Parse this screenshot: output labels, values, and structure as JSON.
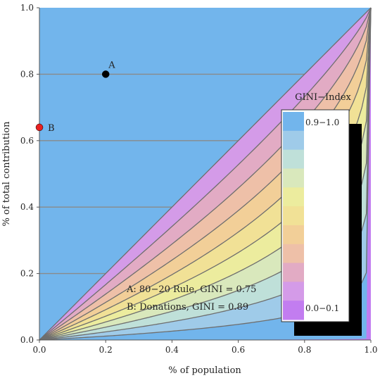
{
  "chart_data": {
    "type": "area",
    "xlabel": "% of population",
    "ylabel": "% of total contribution",
    "xlim": [
      0,
      1
    ],
    "ylim": [
      0,
      1
    ],
    "x_ticks": [
      "0.0",
      "0.2",
      "0.4",
      "0.6",
      "0.8",
      "1.0"
    ],
    "y_ticks": [
      "0.0",
      "0.2",
      "0.4",
      "0.6",
      "0.8",
      "1.0"
    ],
    "x_tick_values": [
      0,
      0.2,
      0.4,
      0.6,
      0.8,
      1.0
    ],
    "y_tick_values": [
      0,
      0.2,
      0.4,
      0.6,
      0.8,
      1.0
    ],
    "curves_description": "Lorenz curves y = 1 - (1 - x)^(1/a) bounding GINI bands",
    "band_exponents": [
      1,
      1.222,
      1.5,
      1.857,
      2.333,
      3,
      4,
      5.667,
      9,
      19,
      1000
    ],
    "band_colors": [
      "#c27df0",
      "#d49be8",
      "#e2abc4",
      "#eec0a8",
      "#f2cf98",
      "#f1e196",
      "#ecec9e",
      "#d9e8bc",
      "#bfe0d9",
      "#9fcbe9",
      "#72b5ec"
    ],
    "legend": {
      "title": "GINI−Index",
      "top_label": "0.9−1.0",
      "bottom_label": "0.0−0.1",
      "swatch_colors": [
        "#72b5ec",
        "#9fcbe9",
        "#bfe0d9",
        "#d9e8bc",
        "#ecec9e",
        "#f1e196",
        "#f2cf98",
        "#eec0a8",
        "#e2abc4",
        "#d49be8",
        "#c27df0"
      ]
    },
    "points": [
      {
        "label": "A",
        "x": 0.2,
        "y": 0.8,
        "color": "#000000"
      },
      {
        "label": "B",
        "x": 0.0,
        "y": 0.64,
        "color": "#e82020"
      }
    ],
    "annotations": [
      "A: 80−20 Rule, GINI = 0.75",
      "B: Donations, GINI = 0.89"
    ]
  }
}
